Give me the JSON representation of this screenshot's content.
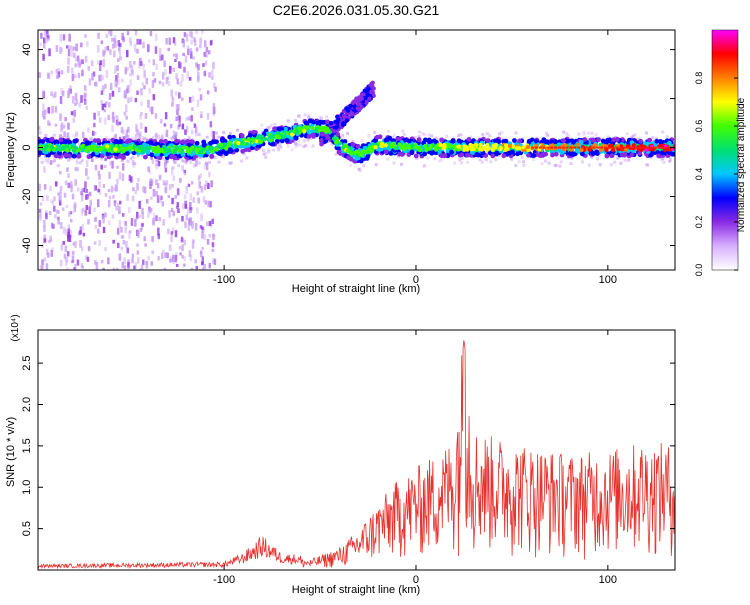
{
  "title": "C2E6.2026.031.05.30.G21",
  "chart_data": [
    {
      "type": "heatmap",
      "title": "",
      "xlabel": "Height of straight line (km)",
      "ylabel": "Frequency (Hz)",
      "xlim": [
        -197,
        135
      ],
      "ylim": [
        -50,
        48
      ],
      "xticks": [
        -100,
        0,
        100
      ],
      "yticks": [
        -40,
        -20,
        0,
        20,
        40
      ],
      "colorbar": {
        "label": "Normalized spectral amplitude",
        "range": [
          0,
          1
        ],
        "ticks": [
          "0.0",
          "0.2",
          "0.4",
          "0.6",
          "0.8"
        ],
        "colors": [
          "#ffffff",
          "#d8b0ff",
          "#8a2be2",
          "#0000ff",
          "#00c8ff",
          "#00e070",
          "#40ff00",
          "#ffff00",
          "#ff8000",
          "#ff0000",
          "#ff00ff"
        ]
      },
      "ridge": [
        {
          "x": -197,
          "y": 0
        },
        {
          "x": -110,
          "y": -1
        },
        {
          "x": -90,
          "y": 2
        },
        {
          "x": -70,
          "y": 5
        },
        {
          "x": -55,
          "y": 8
        },
        {
          "x": -45,
          "y": 7
        },
        {
          "x": -40,
          "y": 1
        },
        {
          "x": -30,
          "y": -3
        },
        {
          "x": -20,
          "y": 1
        },
        {
          "x": 0,
          "y": 0
        },
        {
          "x": 135,
          "y": 0
        }
      ],
      "branch": [
        {
          "x": -50,
          "y": 3
        },
        {
          "x": -35,
          "y": 14
        },
        {
          "x": -22,
          "y": 24
        }
      ],
      "scatter_region": {
        "x": [
          -197,
          -105
        ],
        "y": [
          -50,
          48
        ]
      }
    },
    {
      "type": "line",
      "title": "",
      "xlabel": "Height of straight line (km)",
      "ylabel": "SNR (10 * v/v)",
      "y_multiplier": "(x10⁴)",
      "xlim": [
        -197,
        135
      ],
      "ylim": [
        0,
        2.9
      ],
      "xticks": [
        -100,
        0,
        100
      ],
      "yticks": [
        0.5,
        1.0,
        1.5,
        2.0,
        2.5
      ],
      "color": "#e8302c",
      "envelope_x": [
        -197,
        -150,
        -100,
        -90,
        -80,
        -70,
        -55,
        -40,
        -30,
        -20,
        -10,
        0,
        10,
        20,
        25,
        30,
        40,
        60,
        80,
        100,
        120,
        135
      ],
      "envelope_y": [
        0.05,
        0.06,
        0.07,
        0.15,
        0.3,
        0.15,
        0.12,
        0.25,
        0.45,
        0.75,
        1.0,
        1.15,
        1.3,
        1.5,
        2.8,
        1.6,
        1.5,
        1.4,
        1.3,
        1.35,
        1.45,
        1.4
      ]
    }
  ]
}
